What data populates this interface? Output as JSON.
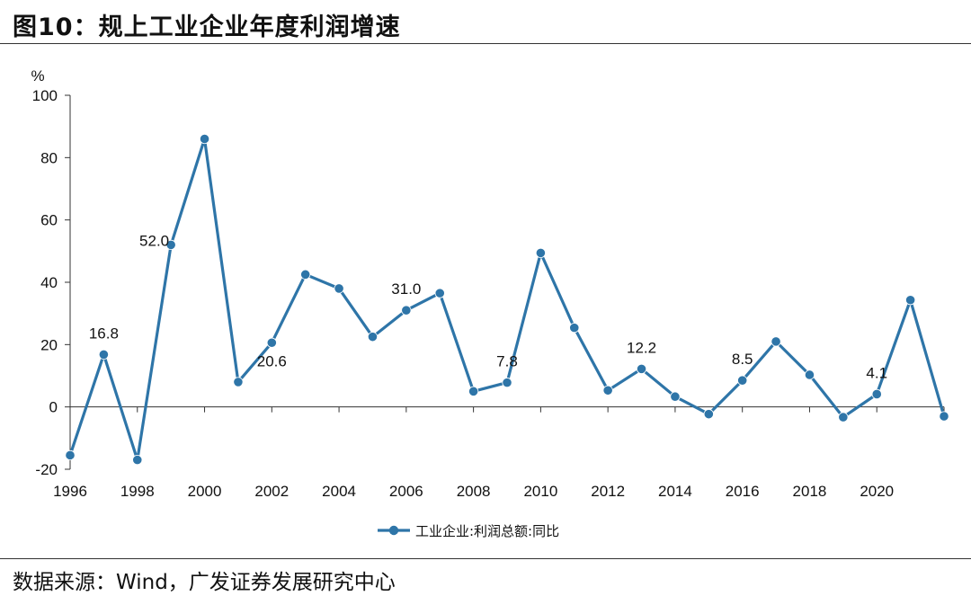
{
  "header": {
    "title": "图10：规上工业企业年度利润增速"
  },
  "footer": {
    "source": "数据来源：Wind，广发证券发展研究中心"
  },
  "colors": {
    "series": "#2e75a8",
    "axis": "#333333"
  },
  "chart_data": {
    "type": "line",
    "title": "",
    "xlabel": "",
    "ylabel": "%",
    "ylim": [
      -20,
      100
    ],
    "yticks": [
      -20,
      0,
      20,
      40,
      60,
      80,
      100
    ],
    "xlim": [
      1996,
      2022
    ],
    "xticks": [
      1996,
      1998,
      2000,
      2002,
      2004,
      2006,
      2008,
      2010,
      2012,
      2014,
      2016,
      2018,
      2020
    ],
    "legend_placement": "bottom-center",
    "grid": false,
    "series": [
      {
        "name": "工业企业:利润总额:同比",
        "x": [
          1996,
          1997,
          1998,
          1999,
          2000,
          2001,
          2002,
          2003,
          2004,
          2005,
          2006,
          2007,
          2008,
          2009,
          2010,
          2011,
          2012,
          2013,
          2014,
          2015,
          2016,
          2017,
          2018,
          2019,
          2020,
          2021,
          2022
        ],
        "values": [
          -15.5,
          16.8,
          -17.0,
          52.0,
          86.0,
          8.0,
          20.6,
          42.5,
          38.0,
          22.5,
          31.0,
          36.5,
          5.0,
          7.8,
          49.4,
          25.4,
          5.3,
          12.2,
          3.3,
          -2.3,
          8.5,
          21.0,
          10.3,
          -3.3,
          4.1,
          34.3,
          -3.0
        ]
      }
    ],
    "annotations": [
      {
        "x": 1997,
        "label": "16.8",
        "pos": "above"
      },
      {
        "x": 1999,
        "label": "52.0",
        "pos": "left"
      },
      {
        "x": 2002,
        "label": "20.6",
        "pos": "below"
      },
      {
        "x": 2006,
        "label": "31.0",
        "pos": "above"
      },
      {
        "x": 2009,
        "label": "7.8",
        "pos": "above"
      },
      {
        "x": 2013,
        "label": "12.2",
        "pos": "above"
      },
      {
        "x": 2016,
        "label": "8.5",
        "pos": "above"
      },
      {
        "x": 2020,
        "label": "4.1",
        "pos": "above"
      }
    ]
  }
}
